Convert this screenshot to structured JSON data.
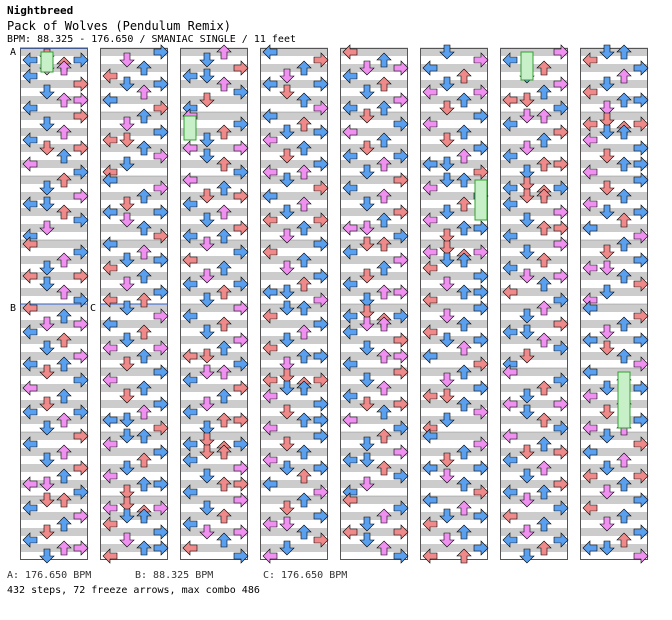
{
  "header": {
    "artist": "Nightbreed",
    "title": "Pack of Wolves (Pendulum Remix)",
    "info": "BPM: 88.325 - 176.650 / SMANIAC SINGLE / 11 feet"
  },
  "section_markers": [
    {
      "label": "A",
      "column": 0,
      "measure": 0
    },
    {
      "label": "B",
      "column": 0,
      "measure": 4
    },
    {
      "label": "C",
      "column": 1,
      "measure": 4
    }
  ],
  "footer": {
    "bpm_a": "A: 176.650 BPM",
    "bpm_b": "B: 88.325 BPM",
    "bpm_c": "C: 176.650 BPM",
    "stats": "432 steps, 72 freeze arrows, max combo 486"
  },
  "colors": {
    "quarter_note": "#f08a8a",
    "eighth_note": "#5aa0f0",
    "sixteenth_note": "#f090f0",
    "shock_note": "#f0e020",
    "freeze_body": "#c8f0c8",
    "freeze_border": "#30a030",
    "stripe": "#cccccc",
    "border": "#555555"
  },
  "chart": {
    "columns": 8,
    "measures_per_column": 8,
    "lanes": [
      "left-arrow",
      "down-arrow",
      "up-arrow",
      "right-arrow"
    ],
    "measures": [
      [
        [
          0,
          []
        ],
        [
          2,
          [
            1
          ]
        ],
        [
          4,
          [
            0,
            3
          ]
        ],
        [
          6,
          [
            2
          ]
        ],
        [
          8,
          [
            1,
            2
          ]
        ],
        [
          12,
          [
            0
          ]
        ],
        [
          16,
          [
            3
          ]
        ],
        [
          20,
          [
            1
          ]
        ],
        [
          24,
          [
            2,
            3
          ]
        ],
        [
          28,
          [
            0
          ]
        ]
      ],
      [
        [
          0,
          [
            3
          ]
        ],
        [
          4,
          [
            1
          ]
        ],
        [
          8,
          [
            2
          ]
        ],
        [
          12,
          [
            0
          ]
        ],
        [
          16,
          [
            1,
            3
          ]
        ],
        [
          20,
          [
            2
          ]
        ],
        [
          24,
          [
            0
          ]
        ],
        [
          28,
          [
            3
          ]
        ]
      ],
      [
        [
          0,
          [
            2
          ]
        ],
        [
          4,
          [
            1
          ]
        ],
        [
          8,
          [
            3
          ]
        ],
        [
          12,
          [
            0,
            1
          ]
        ],
        [
          16,
          [
            2
          ]
        ],
        [
          20,
          [
            3
          ]
        ],
        [
          24,
          [
            1
          ]
        ],
        [
          28,
          [
            0
          ]
        ]
      ],
      [
        [
          0,
          [
            0
          ]
        ],
        [
          4,
          [
            3
          ]
        ],
        [
          8,
          [
            2
          ]
        ],
        [
          12,
          [
            1
          ]
        ],
        [
          16,
          [
            0,
            3
          ]
        ],
        [
          20,
          [
            1
          ]
        ],
        [
          24,
          [
            2
          ]
        ],
        [
          28,
          [
            3
          ]
        ]
      ],
      [
        [
          0,
          [
            0
          ]
        ],
        [
          4,
          [
            2
          ]
        ],
        [
          8,
          [
            1,
            3
          ]
        ],
        [
          12,
          [
            0
          ]
        ],
        [
          16,
          [
            2
          ]
        ],
        [
          20,
          [
            1
          ]
        ],
        [
          24,
          [
            3
          ]
        ],
        [
          28,
          [
            0,
            2
          ]
        ]
      ],
      [
        [
          0,
          [
            1
          ]
        ],
        [
          4,
          [
            3
          ]
        ],
        [
          8,
          [
            0
          ]
        ],
        [
          12,
          [
            2
          ]
        ],
        [
          16,
          [
            1
          ]
        ],
        [
          20,
          [
            0,
            3
          ]
        ],
        [
          24,
          [
            2
          ]
        ],
        [
          28,
          [
            1
          ]
        ]
      ],
      [
        [
          0,
          [
            3
          ]
        ],
        [
          4,
          [
            0
          ]
        ],
        [
          8,
          [
            2
          ]
        ],
        [
          12,
          [
            1
          ]
        ],
        [
          16,
          [
            3
          ]
        ],
        [
          20,
          [
            2
          ]
        ],
        [
          24,
          [
            0,
            1
          ]
        ],
        [
          28,
          [
            3
          ]
        ]
      ],
      [
        [
          0,
          [
            1,
            2
          ]
        ],
        [
          4,
          [
            0
          ]
        ],
        [
          8,
          [
            3
          ]
        ],
        [
          12,
          [
            2
          ]
        ],
        [
          16,
          [
            1
          ]
        ],
        [
          20,
          [
            0
          ]
        ],
        [
          24,
          [
            2,
            3
          ]
        ],
        [
          28,
          [
            1
          ]
        ]
      ]
    ]
  }
}
